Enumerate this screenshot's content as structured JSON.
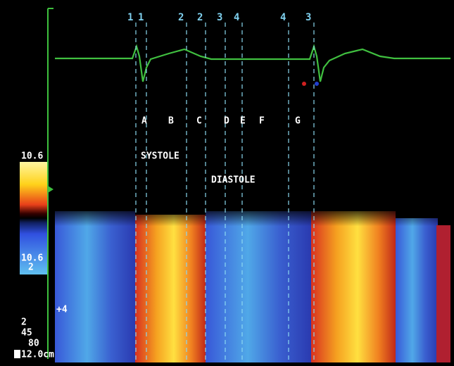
{
  "markers": [
    "1",
    "1",
    "2",
    "2",
    "3",
    "4",
    "4",
    "3"
  ],
  "phases": [
    "A",
    "B",
    "C",
    "D",
    "E",
    "F",
    "G"
  ],
  "systole": "SYSTOLE",
  "diastole": "DIASTOLE",
  "scale": {
    "top": "10.6",
    "bottom": "10.6"
  },
  "settings": [
    "2",
    "+4",
    "2",
    "45",
    "80"
  ],
  "depth": "12.0cm"
}
